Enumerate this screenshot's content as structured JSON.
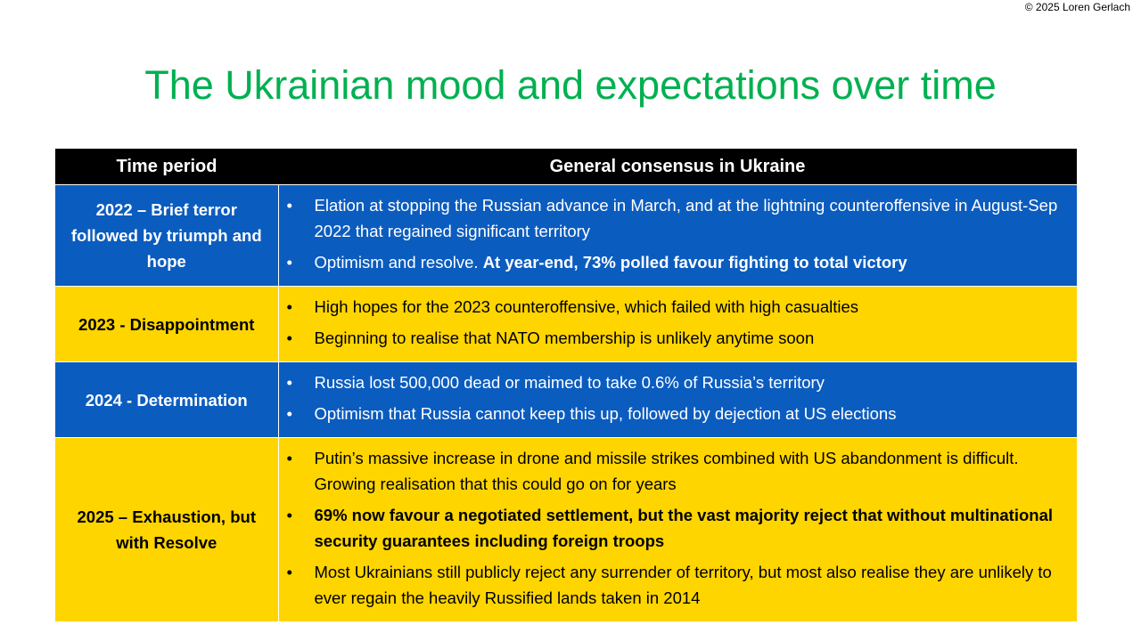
{
  "copyright": "© 2025 Loren Gerlach",
  "title": "The Ukrainian mood and expectations over time",
  "table": {
    "headers": [
      "Time period",
      "General consensus in Ukraine"
    ],
    "rows": [
      {
        "period": "2022 – Brief terror followed by triumph and hope",
        "bullets": [
          [
            "Elation at stopping the Russian advance in March, and at the lightning counteroffensive in August-Sep 2022 that regained significant territory"
          ],
          [
            "Optimism and resolve. ",
            {
              "bold": "At year-end, 73% polled favour fighting to total victory"
            }
          ]
        ]
      },
      {
        "period": "2023 - Disappointment",
        "bullets": [
          [
            "High hopes for the 2023 counteroffensive, which failed with high casualties"
          ],
          [
            "Beginning to realise that NATO membership is unlikely anytime soon"
          ]
        ]
      },
      {
        "period": "2024 - Determination",
        "bullets": [
          [
            "Russia lost 500,000 dead or maimed to take 0.6% of Russia’s territory"
          ],
          [
            "Optimism that Russia cannot keep this up, followed by dejection at US elections"
          ]
        ]
      },
      {
        "period": "2025 – Exhaustion, but with Resolve",
        "bullets": [
          [
            "Putin’s massive increase in drone and missile strikes combined with US abandonment is difficult. Growing realisation that this could go on for years"
          ],
          [
            {
              "bold": "69% now favour a negotiated settlement, but the vast majority reject that without multinational security guarantees including foreign troops"
            }
          ],
          [
            "Most Ukrainians still publicly reject any surrender of territory, but most also realise they are unlikely to ever regain the heavily Russified lands taken in 2014"
          ]
        ]
      }
    ]
  }
}
